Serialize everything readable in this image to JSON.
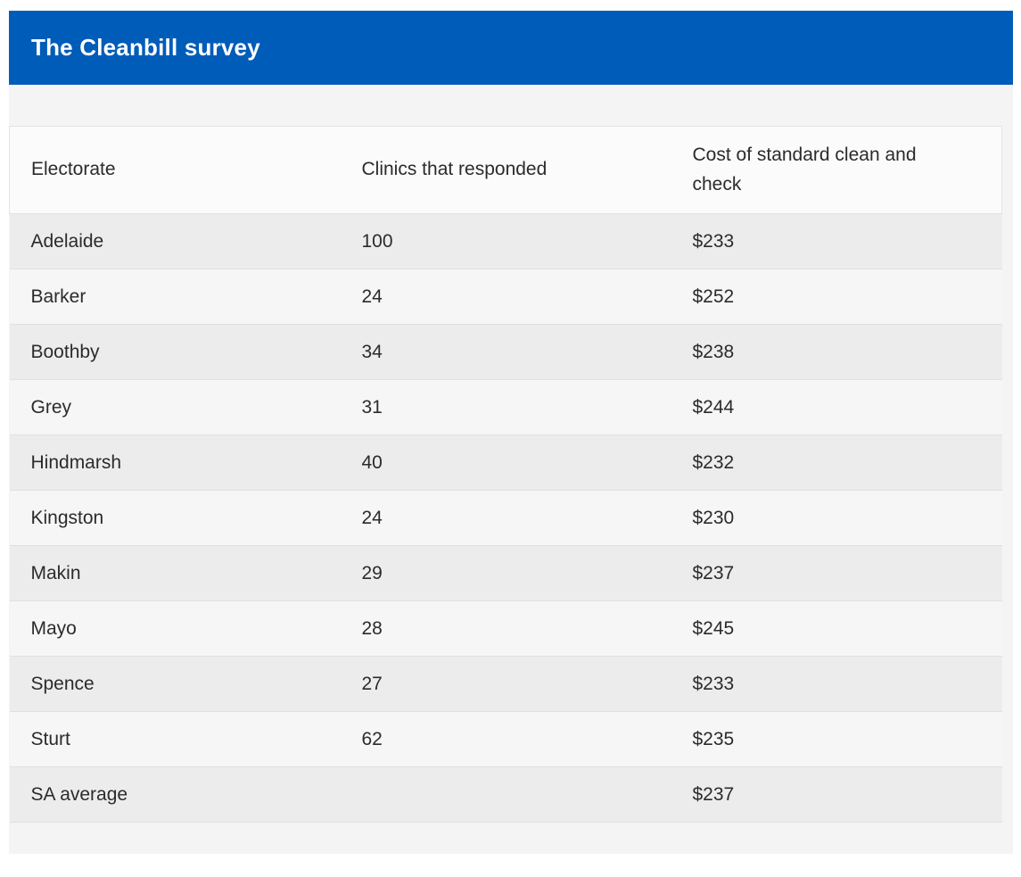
{
  "title_bar": {
    "title": "The Cleanbill survey"
  },
  "colors": {
    "title_bar_bg": "#005cb9",
    "title_text": "#ffffff",
    "widget_bg": "#f4f4f4",
    "header_row_bg": "#fbfbfb",
    "row_odd_bg": "#ececec",
    "row_even_bg": "#f6f6f6",
    "row_border": "#e0e0e0",
    "body_text": "#2b2b2b"
  },
  "chart_data": {
    "type": "table",
    "title": "The Cleanbill survey",
    "columns": [
      "Electorate",
      "Clinics that responded",
      "Cost of standard clean and check"
    ],
    "rows": [
      [
        "Adelaide",
        "100",
        "$233"
      ],
      [
        "Barker",
        "24",
        "$252"
      ],
      [
        "Boothby",
        "34",
        "$238"
      ],
      [
        "Grey",
        "31",
        "$244"
      ],
      [
        "Hindmarsh",
        "40",
        "$232"
      ],
      [
        "Kingston",
        "24",
        "$230"
      ],
      [
        "Makin",
        "29",
        "$237"
      ],
      [
        "Mayo",
        "28",
        "$245"
      ],
      [
        "Spence",
        "27",
        "$233"
      ],
      [
        "Sturt",
        "62",
        "$235"
      ],
      [
        "SA average",
        "",
        "$237"
      ]
    ]
  }
}
